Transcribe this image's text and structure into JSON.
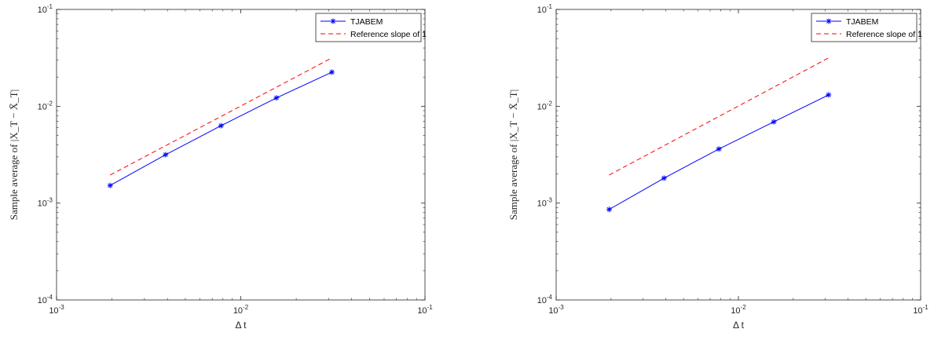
{
  "chart_data": [
    {
      "type": "line",
      "xscale": "log",
      "yscale": "log",
      "xlim": [
        0.001,
        0.1
      ],
      "ylim": [
        0.0001,
        0.1
      ],
      "xlabel": "Δ t",
      "ylabel": "Sample average of |X_T − X̄_T|",
      "legend_position": "top-right",
      "grid": false,
      "xticks": [
        {
          "value": 0.001,
          "base": "10",
          "exp": "-3"
        },
        {
          "value": 0.01,
          "base": "10",
          "exp": "-2"
        },
        {
          "value": 0.1,
          "base": "10",
          "exp": "-1"
        }
      ],
      "yticks": [
        {
          "value": 0.0001,
          "base": "10",
          "exp": "-4"
        },
        {
          "value": 0.001,
          "base": "10",
          "exp": "-3"
        },
        {
          "value": 0.01,
          "base": "10",
          "exp": "-2"
        },
        {
          "value": 0.1,
          "base": "10",
          "exp": "-1"
        }
      ],
      "series": [
        {
          "name": "TJABEM",
          "color": "#0000ff",
          "style": "solid",
          "marker": "asterisk",
          "x": [
            0.001953125,
            0.00390625,
            0.0078125,
            0.015625,
            0.03125
          ],
          "y": [
            0.00152,
            0.00316,
            0.0063,
            0.0122,
            0.0225
          ]
        },
        {
          "name": "Reference slope of 1",
          "color": "#ff0000",
          "style": "dashed",
          "marker": "none",
          "x": [
            0.001953125,
            0.03125
          ],
          "y": [
            0.00195,
            0.0316
          ]
        }
      ]
    },
    {
      "type": "line",
      "xscale": "log",
      "yscale": "log",
      "xlim": [
        0.001,
        0.1
      ],
      "ylim": [
        0.0001,
        0.1
      ],
      "xlabel": "Δ t",
      "ylabel": "Sample average of |X_T − X̄_T|",
      "legend_position": "top-right",
      "grid": false,
      "xticks": [
        {
          "value": 0.001,
          "base": "10",
          "exp": "-3"
        },
        {
          "value": 0.01,
          "base": "10",
          "exp": "-2"
        },
        {
          "value": 0.1,
          "base": "10",
          "exp": "-1"
        }
      ],
      "yticks": [
        {
          "value": 0.0001,
          "base": "10",
          "exp": "-4"
        },
        {
          "value": 0.001,
          "base": "10",
          "exp": "-3"
        },
        {
          "value": 0.01,
          "base": "10",
          "exp": "-2"
        },
        {
          "value": 0.1,
          "base": "10",
          "exp": "-1"
        }
      ],
      "series": [
        {
          "name": "TJABEM",
          "color": "#0000ff",
          "style": "solid",
          "marker": "asterisk",
          "x": [
            0.001953125,
            0.00390625,
            0.0078125,
            0.015625,
            0.03125
          ],
          "y": [
            0.00086,
            0.00181,
            0.00362,
            0.0069,
            0.0131
          ]
        },
        {
          "name": "Reference slope of 1",
          "color": "#ff0000",
          "style": "dashed",
          "marker": "none",
          "x": [
            0.001953125,
            0.03125
          ],
          "y": [
            0.00195,
            0.0316
          ]
        }
      ]
    }
  ]
}
